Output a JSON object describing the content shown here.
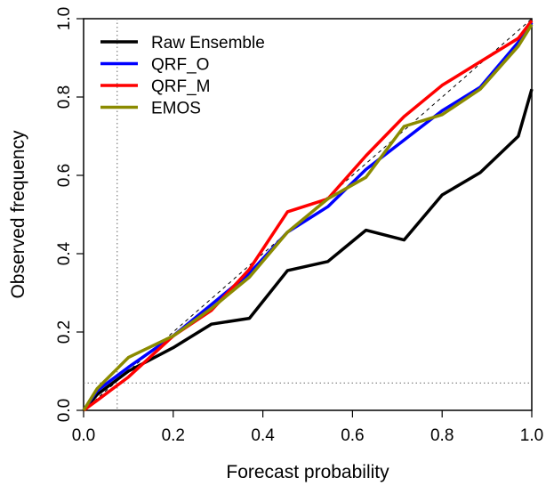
{
  "chart_data": {
    "type": "line",
    "x_label": "Forecast probability",
    "y_label": "Observed frequency",
    "x": [
      0,
      0.03,
      0.1,
      0.2,
      0.285,
      0.37,
      0.455,
      0.545,
      0.63,
      0.715,
      0.8,
      0.885,
      0.97,
      1.0
    ],
    "series": [
      {
        "name": "Raw Ensemble",
        "color": "#000000",
        "values": [
          0,
          0.04,
          0.1,
          0.16,
          0.22,
          0.235,
          0.357,
          0.38,
          0.46,
          0.435,
          0.55,
          0.607,
          0.7,
          0.82
        ]
      },
      {
        "name": "QRF_O",
        "color": "#0000ff",
        "values": [
          0,
          0.05,
          0.11,
          0.19,
          0.27,
          0.35,
          0.455,
          0.52,
          0.615,
          0.69,
          0.765,
          0.825,
          0.94,
          0.99
        ]
      },
      {
        "name": "QRF_M",
        "color": "#ff0000",
        "values": [
          0,
          0.025,
          0.085,
          0.19,
          0.255,
          0.36,
          0.507,
          0.54,
          0.65,
          0.75,
          0.83,
          0.89,
          0.95,
          0.995
        ]
      },
      {
        "name": "EMOS",
        "color": "#8b8b00",
        "values": [
          0,
          0.055,
          0.135,
          0.19,
          0.26,
          0.34,
          0.455,
          0.54,
          0.595,
          0.725,
          0.755,
          0.82,
          0.93,
          0.985
        ]
      }
    ],
    "xlim": [
      0,
      1
    ],
    "ylim": [
      0,
      1
    ],
    "xticks": [
      {
        "value": 0,
        "label": "0.0"
      },
      0.2,
      0.4,
      0.6,
      0.8,
      {
        "value": 1,
        "label": "1.0"
      }
    ],
    "yticks": [
      {
        "value": 0,
        "label": "0.0"
      },
      0.2,
      0.4,
      0.6,
      0.8,
      {
        "value": 1,
        "label": "1.0"
      }
    ],
    "vlines": [
      0.075
    ],
    "hlines": [
      0.07
    ],
    "legend": "top-left"
  }
}
